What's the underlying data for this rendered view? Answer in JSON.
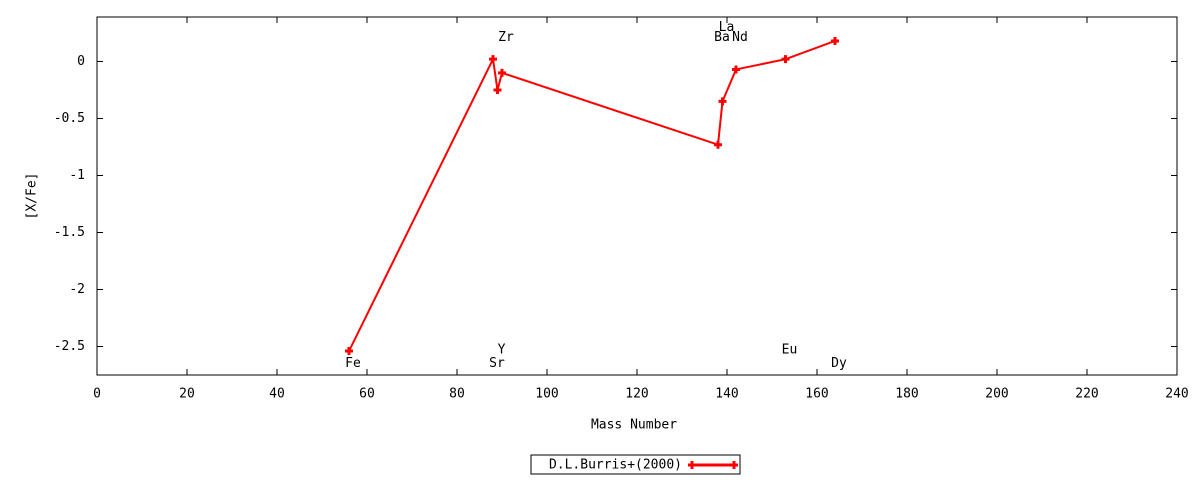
{
  "chart_data": {
    "type": "line",
    "xlabel": "Mass Number",
    "ylabel": "[X/Fe]",
    "xlim": [
      0,
      240
    ],
    "ylim": [
      -2.75,
      0.39
    ],
    "xticks": [
      0,
      20,
      40,
      60,
      80,
      100,
      120,
      140,
      160,
      180,
      200,
      220,
      240
    ],
    "yticks": [
      0,
      -0.5,
      -1,
      -1.5,
      -2,
      -2.5
    ],
    "legend": "bottom",
    "series": [
      {
        "name": "D.L.Burris+(2000)",
        "color": "#ff0000",
        "x": [
          56,
          88,
          89,
          90,
          138,
          139,
          142,
          153,
          164
        ],
        "values": [
          -2.54,
          0.02,
          -0.25,
          -0.1,
          -0.73,
          -0.35,
          -0.07,
          0.02,
          0.18
        ]
      }
    ],
    "annotations": [
      {
        "text": "Fe",
        "x": 56,
        "y": -2.65
      },
      {
        "text": "Y",
        "x": 89,
        "y": -2.53
      },
      {
        "text": "Sr",
        "x": 88,
        "y": -2.65
      },
      {
        "text": "Zr",
        "x": 90,
        "y": 0.21
      },
      {
        "text": "La",
        "x": 139,
        "y": 0.3
      },
      {
        "text": "Ba",
        "x": 138,
        "y": 0.21
      },
      {
        "text": "Nd",
        "x": 142,
        "y": 0.21
      },
      {
        "text": "Eu",
        "x": 153,
        "y": -2.53
      },
      {
        "text": "Dy",
        "x": 164,
        "y": -2.65
      }
    ]
  }
}
